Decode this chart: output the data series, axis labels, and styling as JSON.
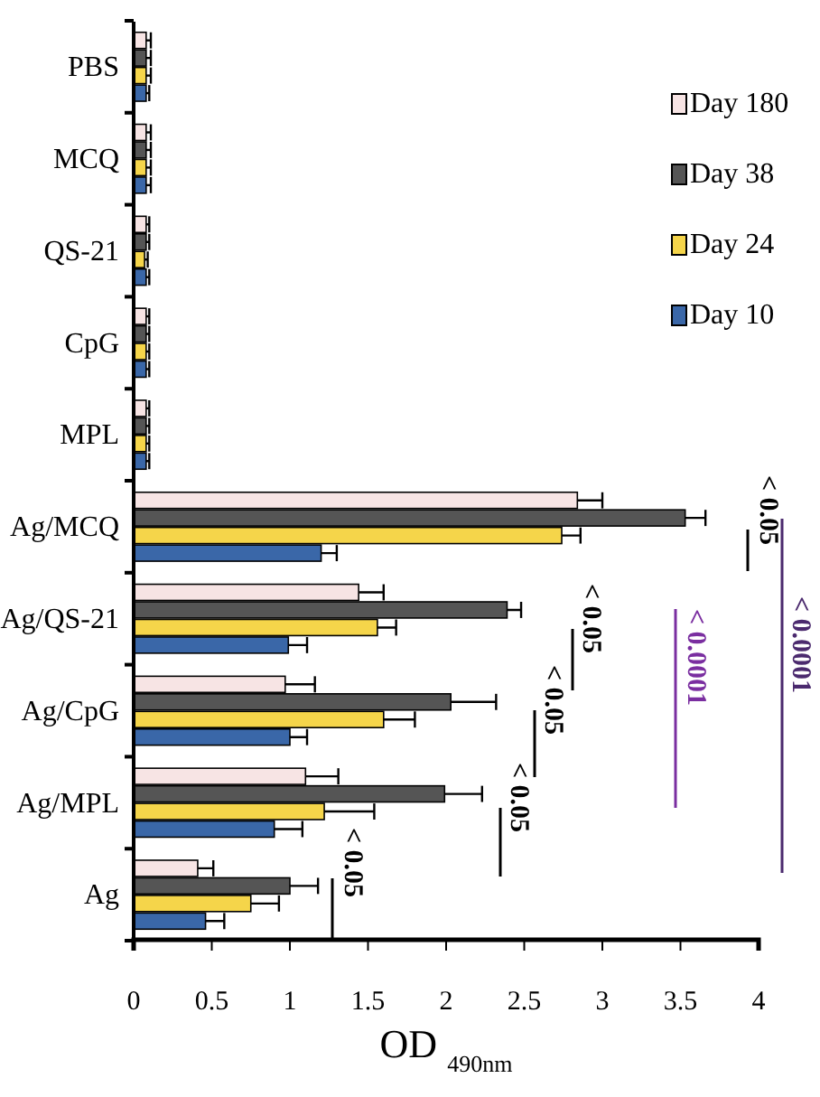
{
  "chart_data": {
    "type": "bar",
    "orientation": "horizontal",
    "categories": [
      "PBS",
      "MCQ",
      "QS-21",
      "CpG",
      "MPL",
      "Ag/MCQ",
      "Ag/QS-21",
      "Ag/CpG",
      "Ag/MPL",
      "Ag"
    ],
    "series": [
      {
        "name": "Day 180",
        "color": "#f7e4e4",
        "values": [
          0.08,
          0.08,
          0.08,
          0.08,
          0.08,
          2.84,
          1.44,
          0.97,
          1.1,
          0.41
        ],
        "errors": [
          0.03,
          0.03,
          0.02,
          0.02,
          0.02,
          0.16,
          0.16,
          0.19,
          0.21,
          0.1
        ]
      },
      {
        "name": "Day 38",
        "color": "#555555",
        "values": [
          0.08,
          0.08,
          0.08,
          0.08,
          0.08,
          3.53,
          2.39,
          2.03,
          1.99,
          1.0
        ],
        "errors": [
          0.03,
          0.03,
          0.02,
          0.02,
          0.02,
          0.13,
          0.09,
          0.29,
          0.24,
          0.18
        ]
      },
      {
        "name": "Day 24",
        "color": "#f5d54a",
        "values": [
          0.08,
          0.08,
          0.07,
          0.08,
          0.08,
          2.74,
          1.56,
          1.6,
          1.22,
          0.75
        ],
        "errors": [
          0.03,
          0.03,
          0.02,
          0.02,
          0.02,
          0.12,
          0.12,
          0.2,
          0.32,
          0.18
        ]
      },
      {
        "name": "Day 10",
        "color": "#3a67a8",
        "values": [
          0.08,
          0.08,
          0.08,
          0.08,
          0.08,
          1.2,
          0.99,
          1.0,
          0.9,
          0.46
        ],
        "errors": [
          0.02,
          0.03,
          0.02,
          0.02,
          0.02,
          0.1,
          0.12,
          0.11,
          0.18,
          0.12
        ]
      }
    ],
    "xlim": [
      0,
      4
    ],
    "xticks": [
      0,
      0.5,
      1,
      1.5,
      2,
      2.5,
      3,
      3.5,
      4
    ],
    "xlabel": "OD $_{490nm}$",
    "legend": "top right",
    "annotations": [
      "< 0.05",
      "< 0.05",
      "< 0.05",
      "< 0.05",
      "< 0.05",
      "< 0.0001",
      "< 0.0001"
    ]
  }
}
